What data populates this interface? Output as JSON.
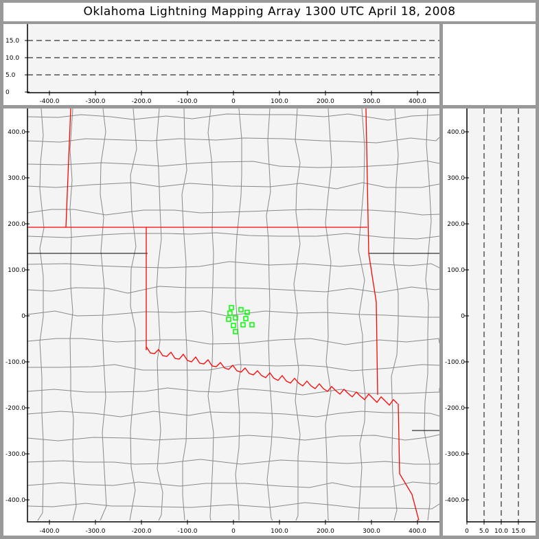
{
  "title": "Oklahoma Lightning Mapping Array   1300 UTC  April 18, 2008",
  "colors": {
    "state_border": "#ff0000",
    "county_line": "#888888",
    "source_marker": "#00ff00",
    "plot_background": "#f4f4f4",
    "frame": "#999999"
  },
  "chart_data": [
    {
      "type": "scatter",
      "panel": "plan-view",
      "xlim": [
        -450,
        450
      ],
      "ylim": [
        -450,
        450
      ],
      "x_ticks": [
        "-400.0",
        "-300.0",
        "-200.0",
        "-100.0",
        "0",
        "100.0",
        "200.0",
        "300.0",
        "400.0"
      ],
      "y_ticks": [
        "400.0",
        "300.0",
        "200.0",
        "100.0",
        "0",
        "-100.0",
        "-200.0",
        "-300.0",
        "-400.0"
      ],
      "marker": "square",
      "points": [
        [
          -4.5,
          17.9
        ],
        [
          16.4,
          13.4
        ],
        [
          29.9,
          7.5
        ],
        [
          -7.5,
          6.0
        ],
        [
          4.5,
          -4.5
        ],
        [
          26.9,
          -6.0
        ],
        [
          -10.4,
          -7.5
        ],
        [
          0,
          -20.9
        ],
        [
          20.9,
          -19.4
        ],
        [
          40.3,
          -19.4
        ],
        [
          4.5,
          -34.3
        ]
      ]
    },
    {
      "type": "scatter",
      "panel": "east-west-altitude",
      "xlim": [
        -450,
        450
      ],
      "ylim": [
        0,
        20
      ],
      "x_ticks": [
        "-400.0",
        "-300.0",
        "-200.0",
        "-100.0",
        "0",
        "100.0",
        "200.0",
        "300.0",
        "400.0"
      ],
      "y_ticks": [
        "15.0",
        "10.0",
        "5.0",
        "0"
      ],
      "grid_dashed_at": [
        5,
        10,
        15
      ],
      "points": []
    },
    {
      "type": "scatter",
      "panel": "altitude-north-south",
      "xlim": [
        0,
        20
      ],
      "ylim": [
        -450,
        450
      ],
      "x_ticks": [
        "0",
        "5.0",
        "10.0",
        "15.0"
      ],
      "y_ticks": [
        "400.0",
        "300.0",
        "200.0",
        "100.0",
        "0",
        "-100.0",
        "-200.0",
        "-300.0",
        "-400.0"
      ],
      "grid_dashed_at": [
        5,
        10,
        15
      ],
      "points": []
    }
  ]
}
